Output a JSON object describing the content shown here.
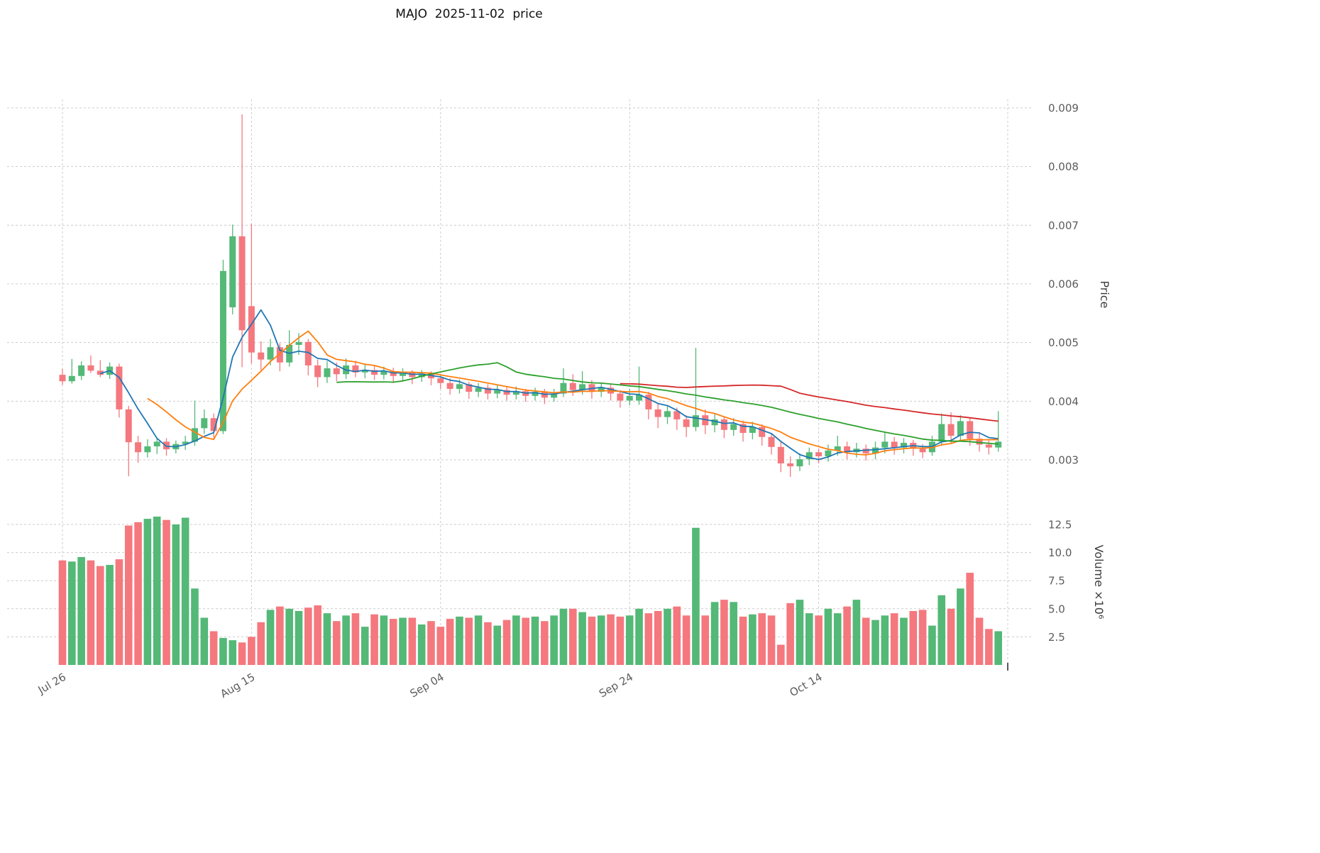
{
  "chart_data": {
    "type": "candlestick",
    "title": "MAJO  2025-11-02  price",
    "x_axis": {
      "tick_labels": [
        "Jul 26",
        "Aug 15",
        "Sep 04",
        "Sep 24",
        "Oct 14"
      ],
      "tick_indices": [
        0,
        20,
        40,
        60,
        80
      ]
    },
    "price_axis": {
      "label": "Price",
      "ticks": [
        0.003,
        0.004,
        0.005,
        0.006,
        0.007,
        0.008,
        0.009
      ],
      "range": [
        0.0026,
        0.0092
      ]
    },
    "volume_axis": {
      "label": "Volume ×10⁶",
      "ticks": [
        2.5,
        5.0,
        7.5,
        10.0,
        12.5
      ],
      "unit": "millions",
      "range": [
        0,
        13.9
      ]
    },
    "colors": {
      "up": "#54b877",
      "down": "#f4787e",
      "ma_fast": "#1f77b4",
      "ma_mid": "#ff7f0e",
      "ma_slow": "#2ca02c",
      "ma_long": "#d62728",
      "grid": "#cccccc",
      "tick_text": "#5c5c5c"
    },
    "moving_averages": [
      {
        "name": "MA5",
        "window": 5,
        "color_key": "ma_fast"
      },
      {
        "name": "MA10",
        "window": 10,
        "color_key": "ma_mid"
      },
      {
        "name": "MA30",
        "window": 30,
        "color_key": "ma_slow"
      },
      {
        "name": "MA60",
        "window": 60,
        "color_key": "ma_long"
      }
    ],
    "ohlc": [
      [
        0.00445,
        0.00455,
        0.00428,
        0.00434
      ],
      [
        0.00434,
        0.00472,
        0.0043,
        0.00443
      ],
      [
        0.00443,
        0.00468,
        0.00436,
        0.00461
      ],
      [
        0.00461,
        0.00478,
        0.00448,
        0.00452
      ],
      [
        0.00452,
        0.0047,
        0.00441,
        0.00445
      ],
      [
        0.00445,
        0.00466,
        0.00438,
        0.00459
      ],
      [
        0.00459,
        0.00464,
        0.00372,
        0.00386
      ],
      [
        0.00386,
        0.00392,
        0.00272,
        0.0033
      ],
      [
        0.0033,
        0.00341,
        0.00295,
        0.00313
      ],
      [
        0.00313,
        0.00335,
        0.00304,
        0.00323
      ],
      [
        0.00323,
        0.00338,
        0.0031,
        0.00331
      ],
      [
        0.00331,
        0.00337,
        0.00307,
        0.00318
      ],
      [
        0.00318,
        0.00333,
        0.00311,
        0.00327
      ],
      [
        0.00327,
        0.00341,
        0.00317,
        0.00331
      ],
      [
        0.00331,
        0.00401,
        0.00324,
        0.00354
      ],
      [
        0.00354,
        0.00386,
        0.00344,
        0.00371
      ],
      [
        0.00371,
        0.00379,
        0.00337,
        0.00349
      ],
      [
        0.00349,
        0.00641,
        0.00344,
        0.00622
      ],
      [
        0.0056,
        0.00701,
        0.00548,
        0.00681
      ],
      [
        0.00681,
        0.00889,
        0.00458,
        0.00521
      ],
      [
        0.00562,
        0.00702,
        0.00464,
        0.00483
      ],
      [
        0.00483,
        0.00502,
        0.00453,
        0.00471
      ],
      [
        0.00471,
        0.00506,
        0.00461,
        0.00492
      ],
      [
        0.00492,
        0.00499,
        0.00451,
        0.00466
      ],
      [
        0.00466,
        0.00521,
        0.00459,
        0.00496
      ],
      [
        0.00496,
        0.00516,
        0.00479,
        0.00501
      ],
      [
        0.00501,
        0.00506,
        0.00444,
        0.00461
      ],
      [
        0.00461,
        0.00471,
        0.00424,
        0.00441
      ],
      [
        0.00441,
        0.00469,
        0.00431,
        0.00456
      ],
      [
        0.00456,
        0.00466,
        0.00434,
        0.00446
      ],
      [
        0.00446,
        0.00473,
        0.00438,
        0.00461
      ],
      [
        0.00461,
        0.00469,
        0.00441,
        0.00449
      ],
      [
        0.00449,
        0.00463,
        0.00439,
        0.00453
      ],
      [
        0.00453,
        0.00461,
        0.00436,
        0.00445
      ],
      [
        0.00445,
        0.00459,
        0.00437,
        0.00451
      ],
      [
        0.00451,
        0.00457,
        0.00431,
        0.00443
      ],
      [
        0.00443,
        0.00456,
        0.00434,
        0.00449
      ],
      [
        0.00449,
        0.00453,
        0.00429,
        0.00441
      ],
      [
        0.00441,
        0.00453,
        0.00433,
        0.00447
      ],
      [
        0.00447,
        0.00451,
        0.00427,
        0.00439
      ],
      [
        0.00439,
        0.00446,
        0.00421,
        0.00431
      ],
      [
        0.00431,
        0.00439,
        0.00411,
        0.00421
      ],
      [
        0.00421,
        0.00437,
        0.00413,
        0.00429
      ],
      [
        0.00429,
        0.00433,
        0.00404,
        0.00416
      ],
      [
        0.00416,
        0.00431,
        0.00407,
        0.00423
      ],
      [
        0.00423,
        0.00429,
        0.00403,
        0.00413
      ],
      [
        0.00413,
        0.00427,
        0.00405,
        0.00419
      ],
      [
        0.00419,
        0.00425,
        0.00401,
        0.00411
      ],
      [
        0.00411,
        0.00425,
        0.00403,
        0.00417
      ],
      [
        0.00417,
        0.00421,
        0.00399,
        0.00409
      ],
      [
        0.00409,
        0.00423,
        0.00401,
        0.00416
      ],
      [
        0.00416,
        0.00421,
        0.00395,
        0.00406
      ],
      [
        0.00406,
        0.00421,
        0.00399,
        0.00413
      ],
      [
        0.00413,
        0.00456,
        0.00407,
        0.00431
      ],
      [
        0.00431,
        0.00446,
        0.00409,
        0.00419
      ],
      [
        0.00419,
        0.00451,
        0.00411,
        0.00429
      ],
      [
        0.00429,
        0.00436,
        0.00404,
        0.00416
      ],
      [
        0.00416,
        0.00431,
        0.00407,
        0.00423
      ],
      [
        0.00423,
        0.00429,
        0.00401,
        0.00413
      ],
      [
        0.00413,
        0.00419,
        0.00389,
        0.00401
      ],
      [
        0.00401,
        0.00421,
        0.00393,
        0.00409
      ],
      [
        0.00401,
        0.00459,
        0.00394,
        0.00411
      ],
      [
        0.00411,
        0.00416,
        0.00369,
        0.00386
      ],
      [
        0.00386,
        0.00396,
        0.00354,
        0.00373
      ],
      [
        0.00373,
        0.00393,
        0.00361,
        0.00383
      ],
      [
        0.00383,
        0.00389,
        0.00351,
        0.00369
      ],
      [
        0.00369,
        0.00376,
        0.00339,
        0.00356
      ],
      [
        0.00356,
        0.00491,
        0.00349,
        0.00376
      ],
      [
        0.00376,
        0.00386,
        0.00344,
        0.00359
      ],
      [
        0.00359,
        0.00379,
        0.00347,
        0.00369
      ],
      [
        0.00369,
        0.00373,
        0.00337,
        0.00351
      ],
      [
        0.00351,
        0.00371,
        0.00341,
        0.00361
      ],
      [
        0.00361,
        0.00367,
        0.00331,
        0.00346
      ],
      [
        0.00346,
        0.00365,
        0.00335,
        0.00356
      ],
      [
        0.00356,
        0.00361,
        0.00324,
        0.00339
      ],
      [
        0.00339,
        0.00346,
        0.00309,
        0.00322
      ],
      [
        0.00322,
        0.00331,
        0.00279,
        0.00294
      ],
      [
        0.00294,
        0.00306,
        0.00271,
        0.00289
      ],
      [
        0.00289,
        0.00311,
        0.00281,
        0.00301
      ],
      [
        0.00301,
        0.00321,
        0.00291,
        0.00313
      ],
      [
        0.00313,
        0.00319,
        0.00294,
        0.00306
      ],
      [
        0.00306,
        0.00326,
        0.00297,
        0.00316
      ],
      [
        0.00316,
        0.00341,
        0.00307,
        0.00323
      ],
      [
        0.00323,
        0.00331,
        0.00301,
        0.00313
      ],
      [
        0.00313,
        0.00329,
        0.00304,
        0.00319
      ],
      [
        0.00319,
        0.00326,
        0.00299,
        0.00311
      ],
      [
        0.00311,
        0.00331,
        0.00301,
        0.00321
      ],
      [
        0.00321,
        0.00346,
        0.00311,
        0.00331
      ],
      [
        0.00331,
        0.00339,
        0.00309,
        0.00321
      ],
      [
        0.00321,
        0.00337,
        0.00311,
        0.00329
      ],
      [
        0.00329,
        0.00334,
        0.00307,
        0.00319
      ],
      [
        0.00319,
        0.00327,
        0.00303,
        0.00313
      ],
      [
        0.00313,
        0.00341,
        0.00307,
        0.00331
      ],
      [
        0.00331,
        0.00379,
        0.00324,
        0.00361
      ],
      [
        0.00361,
        0.00381,
        0.00329,
        0.00341
      ],
      [
        0.00341,
        0.00376,
        0.00334,
        0.00366
      ],
      [
        0.00366,
        0.00371,
        0.00324,
        0.00336
      ],
      [
        0.00336,
        0.00346,
        0.00314,
        0.00326
      ],
      [
        0.00326,
        0.00333,
        0.00309,
        0.00321
      ],
      [
        0.00321,
        0.00383,
        0.00314,
        0.00331
      ]
    ],
    "volume": [
      9.3,
      9.2,
      9.6,
      9.3,
      8.8,
      8.9,
      9.4,
      12.4,
      12.7,
      13.0,
      13.2,
      12.9,
      12.5,
      13.1,
      6.8,
      4.2,
      3.0,
      2.4,
      2.2,
      2.0,
      2.5,
      3.8,
      4.9,
      5.2,
      5.0,
      4.8,
      5.1,
      5.3,
      4.6,
      3.9,
      4.4,
      4.6,
      3.4,
      4.5,
      4.4,
      4.1,
      4.2,
      4.2,
      3.6,
      3.9,
      3.4,
      4.1,
      4.3,
      4.2,
      4.4,
      3.8,
      3.5,
      4.0,
      4.4,
      4.2,
      4.3,
      3.9,
      4.4,
      5.0,
      5.0,
      4.7,
      4.3,
      4.4,
      4.5,
      4.3,
      4.4,
      5.0,
      4.6,
      4.8,
      5.0,
      5.2,
      4.4,
      12.2,
      4.4,
      5.6,
      5.8,
      5.6,
      4.3,
      4.5,
      4.6,
      4.4,
      1.8,
      5.5,
      5.8,
      4.6,
      4.4,
      5.0,
      4.6,
      5.2,
      5.8,
      4.2,
      4.0,
      4.4,
      4.6,
      4.2,
      4.8,
      4.9,
      3.5,
      6.2,
      5.0,
      6.8,
      8.2,
      4.2,
      3.2,
      3.0
    ]
  }
}
